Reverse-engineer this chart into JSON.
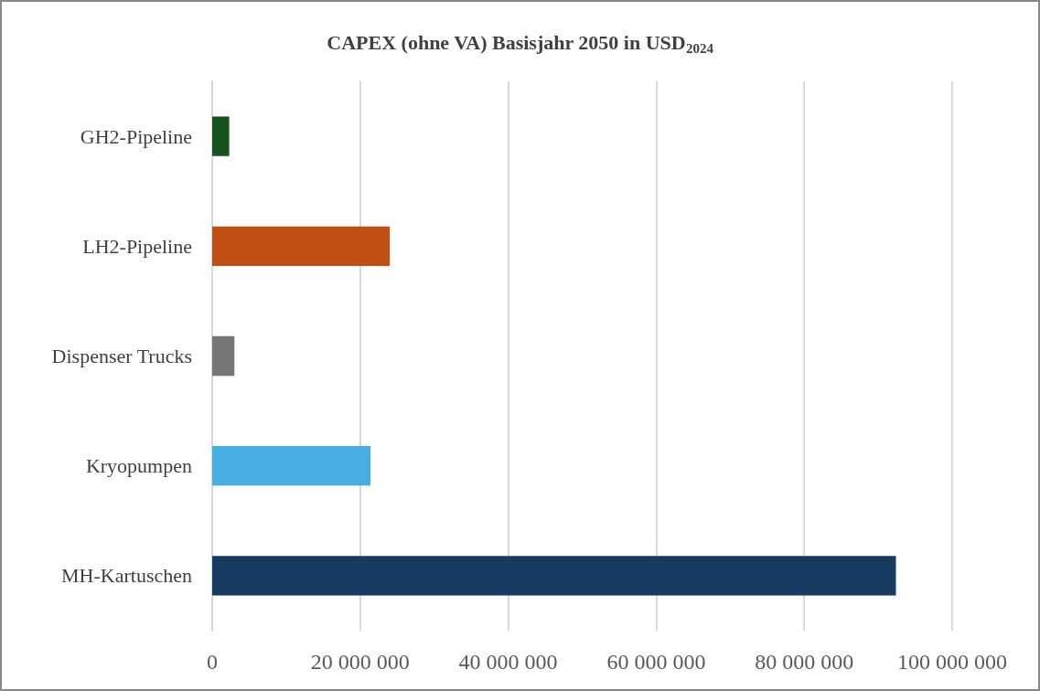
{
  "chart_data": {
    "type": "bar",
    "orientation": "horizontal",
    "title": "CAPEX (ohne VA) Basisjahr 2050 in USD$_{2024}$",
    "categories": [
      "GH2-Pipeline",
      "LH2-Pipeline",
      "Dispenser Trucks",
      "Kryopumpen",
      "MH-Kartuschen"
    ],
    "values": [
      2300000,
      24000000,
      3000000,
      21400000,
      92400000
    ],
    "colors": [
      "#17521f",
      "#c05016",
      "#767676",
      "#46afe0",
      "#173c61"
    ],
    "xlim": [
      0,
      100000000
    ],
    "xticks": [
      0,
      {
        "value": 20000000,
        "label": "20 000 000"
      },
      {
        "value": 40000000,
        "label": "40 000 000"
      },
      {
        "value": 60000000,
        "label": "60 000 000"
      },
      {
        "value": 80000000,
        "label": "80 000 000"
      },
      {
        "value": 100000000,
        "label": "100 000 000"
      }
    ],
    "grid": "x"
  }
}
